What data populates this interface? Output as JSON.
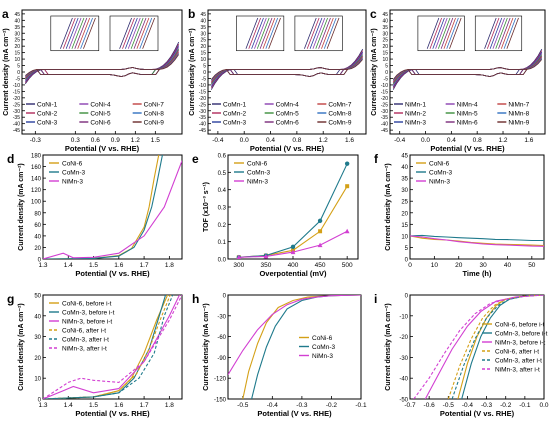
{
  "chart_data": [
    {
      "letter": "a",
      "type": "line",
      "xlabel": "Potential (V vs. RHE)",
      "ylabel": "Current density (mA cm⁻²)",
      "xlim": [
        -0.5,
        1.9
      ],
      "ylim": [
        -48,
        48
      ],
      "xticks": [
        -0.3,
        0.3,
        0.6,
        0.9,
        1.2,
        1.5
      ],
      "yticks": [
        -45,
        -40,
        -35,
        -30,
        -25,
        -20,
        -15,
        -10,
        -5,
        0,
        5,
        10,
        15,
        20,
        25,
        30,
        35,
        40,
        45
      ],
      "legend_position": "bottom",
      "legend_columns": 3,
      "has_insets": true,
      "series": [
        {
          "name": "CoNi-1",
          "color": "#2e2a6e"
        },
        {
          "name": "CoNi-2",
          "color": "#b02a5a"
        },
        {
          "name": "CoNi-3",
          "color": "#2a3f9e"
        },
        {
          "name": "CoNi-4",
          "color": "#8a3fb0"
        },
        {
          "name": "CoNi-5",
          "color": "#3a8f3a"
        },
        {
          "name": "CoNi-6",
          "color": "#7a2a7a"
        },
        {
          "name": "CoNi-7",
          "color": "#c04040"
        },
        {
          "name": "CoNi-8",
          "color": "#3070c0"
        },
        {
          "name": "CoNi-9",
          "color": "#6a2a2a"
        }
      ]
    },
    {
      "letter": "b",
      "type": "line",
      "xlabel": "Potential (V vs. RHE)",
      "ylabel": "Current density (mA cm⁻²)",
      "xlim": [
        -0.55,
        1.85
      ],
      "ylim": [
        -48,
        48
      ],
      "xticks": [
        -0.4,
        0.0,
        0.4,
        0.8,
        1.2,
        1.6
      ],
      "yticks": [
        -45,
        -40,
        -35,
        -30,
        -25,
        -20,
        -15,
        -10,
        -5,
        0,
        5,
        10,
        15,
        20,
        25,
        30,
        35,
        40,
        45
      ],
      "legend_position": "bottom",
      "legend_columns": 3,
      "has_insets": true,
      "series": [
        {
          "name": "CoMn-1",
          "color": "#2e2a6e"
        },
        {
          "name": "CoMn-2",
          "color": "#b02a5a"
        },
        {
          "name": "CoMn-3",
          "color": "#2a3f9e"
        },
        {
          "name": "CoMn-4",
          "color": "#8a3fb0"
        },
        {
          "name": "CoMn-5",
          "color": "#3a8f3a"
        },
        {
          "name": "CoMn-6",
          "color": "#7a2a7a"
        },
        {
          "name": "CoMn-7",
          "color": "#c04040"
        },
        {
          "name": "CoMn-8",
          "color": "#3070c0"
        },
        {
          "name": "CoMn-9",
          "color": "#6a2a2a"
        }
      ]
    },
    {
      "letter": "c",
      "type": "line",
      "xlabel": "Potential (V vs. RHE)",
      "ylabel": "Current density (mA cm⁻²)",
      "xlim": [
        -0.55,
        1.85
      ],
      "ylim": [
        -48,
        48
      ],
      "xticks": [
        -0.4,
        0.0,
        0.4,
        0.8,
        1.2,
        1.6
      ],
      "yticks": [
        -45,
        -40,
        -35,
        -30,
        -25,
        -20,
        -15,
        -10,
        -5,
        0,
        5,
        10,
        15,
        20,
        25,
        30,
        35,
        40,
        45
      ],
      "legend_position": "bottom",
      "legend_columns": 3,
      "has_insets": true,
      "series": [
        {
          "name": "NiMn-1",
          "color": "#2e2a6e"
        },
        {
          "name": "NiMn-2",
          "color": "#b02a5a"
        },
        {
          "name": "NiMn-3",
          "color": "#2a3f9e"
        },
        {
          "name": "NiMn-4",
          "color": "#8a3fb0"
        },
        {
          "name": "NiMn-5",
          "color": "#3a8f3a"
        },
        {
          "name": "NiMn-6",
          "color": "#7a2a7a"
        },
        {
          "name": "NiMn-7",
          "color": "#c04040"
        },
        {
          "name": "NiMn-8",
          "color": "#3070c0"
        },
        {
          "name": "NiMn-9",
          "color": "#6a2a2a"
        }
      ]
    },
    {
      "letter": "d",
      "type": "line",
      "xlabel": "Potential (V vs. RHE)",
      "ylabel": "Current density (mA cm⁻²)",
      "xlim": [
        1.3,
        1.85
      ],
      "ylim": [
        0,
        180
      ],
      "xticks": [
        1.3,
        1.4,
        1.5,
        1.6,
        1.7,
        1.8
      ],
      "yticks": [
        0,
        20,
        40,
        60,
        80,
        100,
        120,
        140,
        160,
        180
      ],
      "legend_position": "top-left",
      "series": [
        {
          "name": "CoNi-6",
          "color": "#d4a017",
          "x": [
            1.3,
            1.5,
            1.6,
            1.65,
            1.7,
            1.72,
            1.74,
            1.76
          ],
          "y": [
            0,
            1,
            6,
            18,
            55,
            90,
            140,
            185
          ]
        },
        {
          "name": "CoMn-3",
          "color": "#1f7a8c",
          "x": [
            1.3,
            1.5,
            1.6,
            1.66,
            1.7,
            1.73,
            1.75,
            1.775
          ],
          "y": [
            0,
            1,
            5,
            20,
            50,
            90,
            130,
            185
          ]
        },
        {
          "name": "NiMn-3",
          "color": "#d23fd2",
          "x": [
            1.3,
            1.38,
            1.42,
            1.5,
            1.6,
            1.7,
            1.78,
            1.85
          ],
          "y": [
            0,
            10,
            2,
            3,
            10,
            40,
            90,
            170
          ]
        }
      ]
    },
    {
      "letter": "e",
      "type": "line",
      "xlabel": "Overpotential (mV)",
      "ylabel": "TOF (x10⁻³ s⁻¹)",
      "xlim": [
        280,
        520
      ],
      "ylim": [
        0,
        0.6
      ],
      "xticks": [
        300,
        350,
        400,
        450,
        500
      ],
      "yticks": [
        0,
        0.1,
        0.2,
        0.3,
        0.4,
        0.5,
        0.6
      ],
      "legend_position": "top-left",
      "series": [
        {
          "name": "CoNi-6",
          "color": "#d4a017",
          "marker": "square",
          "x": [
            300,
            350,
            400,
            450,
            500
          ],
          "y": [
            0.01,
            0.02,
            0.05,
            0.16,
            0.42
          ]
        },
        {
          "name": "CoMn-3",
          "color": "#1f7a8c",
          "marker": "circle",
          "x": [
            300,
            350,
            400,
            450,
            500
          ],
          "y": [
            0.01,
            0.02,
            0.07,
            0.22,
            0.55
          ]
        },
        {
          "name": "NiMn-3",
          "color": "#d23fd2",
          "marker": "triangle",
          "x": [
            300,
            350,
            400,
            450,
            500
          ],
          "y": [
            0.01,
            0.015,
            0.04,
            0.08,
            0.16
          ]
        }
      ]
    },
    {
      "letter": "f",
      "type": "line",
      "xlabel": "Time (h)",
      "ylabel": "Current density (mA cm⁻²)",
      "xlim": [
        0,
        55
      ],
      "ylim": [
        0,
        45
      ],
      "xticks": [
        0,
        10,
        20,
        30,
        40,
        50
      ],
      "yticks": [
        0,
        5,
        10,
        15,
        20,
        25,
        30,
        35,
        40,
        45
      ],
      "legend_position": "top-left",
      "series": [
        {
          "name": "CoNi-6",
          "color": "#d4a017",
          "x": [
            0,
            5,
            10,
            15,
            20,
            25,
            30,
            35,
            40,
            45,
            50,
            55
          ],
          "y": [
            10,
            9,
            8.5,
            8.2,
            7.8,
            7.2,
            6.8,
            6.5,
            6.3,
            6.2,
            6.0,
            5.8
          ]
        },
        {
          "name": "CoMn-3",
          "color": "#1f7a8c",
          "x": [
            0,
            5,
            10,
            15,
            20,
            25,
            30,
            35,
            40,
            45,
            50,
            55
          ],
          "y": [
            10,
            10.2,
            9.8,
            9.5,
            9.2,
            9.0,
            8.8,
            8.5,
            8.4,
            8.2,
            8.0,
            8.0
          ]
        },
        {
          "name": "NiMn-3",
          "color": "#d23fd2",
          "x": [
            0,
            5,
            10,
            15,
            20,
            25,
            30,
            35,
            40,
            45,
            50,
            55
          ],
          "y": [
            10,
            9.5,
            8.8,
            8.2,
            7.5,
            7.0,
            6.5,
            6.2,
            6.0,
            5.8,
            5.6,
            5.5
          ]
        }
      ]
    },
    {
      "letter": "g",
      "type": "line",
      "xlabel": "Potential (V vs. RHE)",
      "ylabel": "Current density (mA cm⁻²)",
      "xlim": [
        1.3,
        1.85
      ],
      "ylim": [
        0,
        50
      ],
      "xticks": [
        1.3,
        1.4,
        1.5,
        1.6,
        1.7,
        1.8
      ],
      "yticks": [
        0,
        10,
        20,
        30,
        40,
        50
      ],
      "legend_position": "top-left",
      "series": [
        {
          "name": "CoNi-6, before i-t",
          "color": "#d4a017",
          "dash": false,
          "x": [
            1.3,
            1.5,
            1.6,
            1.65,
            1.7,
            1.75,
            1.8
          ],
          "y": [
            0,
            1,
            4,
            10,
            22,
            38,
            52
          ]
        },
        {
          "name": "CoMn-3, before i-t",
          "color": "#1f7a8c",
          "dash": false,
          "x": [
            1.3,
            1.5,
            1.6,
            1.66,
            1.72,
            1.76,
            1.79
          ],
          "y": [
            0,
            1,
            3,
            10,
            24,
            40,
            52
          ]
        },
        {
          "name": "NiMn-3, before i-t",
          "color": "#d23fd2",
          "dash": false,
          "x": [
            1.3,
            1.38,
            1.42,
            1.5,
            1.6,
            1.7,
            1.8,
            1.84
          ],
          "y": [
            0,
            4,
            6,
            3,
            5,
            18,
            40,
            50
          ]
        },
        {
          "name": "CoNi-6, after i-t",
          "color": "#d4a017",
          "dash": true,
          "x": [
            1.3,
            1.5,
            1.6,
            1.67,
            1.72,
            1.77,
            1.81
          ],
          "y": [
            0,
            1,
            4,
            12,
            24,
            40,
            52
          ]
        },
        {
          "name": "CoMn-3, after i-t",
          "color": "#1f7a8c",
          "dash": true,
          "x": [
            1.3,
            1.5,
            1.6,
            1.68,
            1.74,
            1.78,
            1.82
          ],
          "y": [
            0,
            1,
            3,
            10,
            22,
            40,
            52
          ]
        },
        {
          "name": "NiMn-3, after i-t",
          "color": "#d23fd2",
          "dash": true,
          "x": [
            1.3,
            1.4,
            1.45,
            1.5,
            1.6,
            1.7,
            1.8,
            1.85
          ],
          "y": [
            0,
            8,
            10,
            9,
            8,
            18,
            38,
            50
          ]
        }
      ]
    },
    {
      "letter": "h",
      "type": "line",
      "xlabel": "Potential (V vs. RHE)",
      "ylabel": "Current density (mA cm⁻²)",
      "xlim": [
        -0.55,
        -0.1
      ],
      "ylim": [
        -150,
        0
      ],
      "xticks": [
        -0.5,
        -0.4,
        -0.3,
        -0.2,
        -0.1
      ],
      "yticks": [
        -150,
        -120,
        -90,
        -60,
        -30,
        0
      ],
      "legend_position": "center-right",
      "series": [
        {
          "name": "CoNi-6",
          "color": "#d4a017",
          "x": [
            -0.5,
            -0.48,
            -0.45,
            -0.42,
            -0.38,
            -0.33,
            -0.28,
            -0.2,
            -0.1
          ],
          "y": [
            -150,
            -110,
            -70,
            -40,
            -18,
            -8,
            -3,
            -1,
            0
          ]
        },
        {
          "name": "CoMn-3",
          "color": "#1f7a8c",
          "x": [
            -0.47,
            -0.45,
            -0.42,
            -0.39,
            -0.35,
            -0.3,
            -0.25,
            -0.2,
            -0.1
          ],
          "y": [
            -150,
            -115,
            -75,
            -45,
            -20,
            -8,
            -3,
            -1,
            0
          ]
        },
        {
          "name": "NiMn-3",
          "color": "#d23fd2",
          "x": [
            -0.55,
            -0.5,
            -0.45,
            -0.4,
            -0.35,
            -0.3,
            -0.25,
            -0.2,
            -0.1
          ],
          "y": [
            -115,
            -80,
            -50,
            -28,
            -14,
            -6,
            -3,
            -1,
            0
          ]
        }
      ]
    },
    {
      "letter": "i",
      "type": "line",
      "xlabel": "Potential (V vs. RHE)",
      "ylabel": "Current density (mA cm⁻²)",
      "xlim": [
        -0.7,
        0.0
      ],
      "ylim": [
        -50,
        0
      ],
      "xticks": [
        -0.7,
        -0.6,
        -0.5,
        -0.4,
        -0.3,
        -0.2,
        -0.1,
        0.0
      ],
      "yticks": [
        -50,
        -40,
        -30,
        -20,
        -10,
        0
      ],
      "legend_position": "center-right",
      "series": [
        {
          "name": "CoNi-6, before i-t",
          "color": "#d4a017",
          "dash": false,
          "x": [
            -0.45,
            -0.4,
            -0.35,
            -0.3,
            -0.25,
            -0.2,
            -0.1,
            0.0
          ],
          "y": [
            -50,
            -33,
            -20,
            -11,
            -5,
            -2,
            -0.5,
            0
          ]
        },
        {
          "name": "CoMn-3, before i-t",
          "color": "#1f7a8c",
          "dash": false,
          "x": [
            -0.43,
            -0.38,
            -0.33,
            -0.28,
            -0.23,
            -0.18,
            -0.1,
            0.0
          ],
          "y": [
            -50,
            -33,
            -20,
            -11,
            -5,
            -2,
            -0.5,
            0
          ]
        },
        {
          "name": "NiMn-3, before i-t",
          "color": "#d23fd2",
          "dash": false,
          "x": [
            -0.62,
            -0.55,
            -0.48,
            -0.4,
            -0.33,
            -0.25,
            -0.15,
            0.0
          ],
          "y": [
            -50,
            -38,
            -26,
            -15,
            -8,
            -3,
            -1,
            0
          ]
        },
        {
          "name": "CoNi-6, after i-t",
          "color": "#d4a017",
          "dash": true,
          "x": [
            -0.5,
            -0.44,
            -0.38,
            -0.32,
            -0.26,
            -0.2,
            -0.1,
            0.0
          ],
          "y": [
            -50,
            -34,
            -21,
            -11,
            -5,
            -2,
            -0.5,
            0
          ]
        },
        {
          "name": "CoMn-3, after i-t",
          "color": "#1f7a8c",
          "dash": true,
          "x": [
            -0.48,
            -0.42,
            -0.36,
            -0.3,
            -0.24,
            -0.18,
            -0.1,
            0.0
          ],
          "y": [
            -50,
            -34,
            -21,
            -11,
            -5,
            -2,
            -0.5,
            0
          ]
        },
        {
          "name": "NiMn-3, after i-t",
          "color": "#d23fd2",
          "dash": true,
          "x": [
            -0.68,
            -0.6,
            -0.52,
            -0.44,
            -0.36,
            -0.28,
            -0.15,
            0.0
          ],
          "y": [
            -50,
            -40,
            -28,
            -17,
            -9,
            -4,
            -1,
            0
          ]
        }
      ]
    }
  ]
}
